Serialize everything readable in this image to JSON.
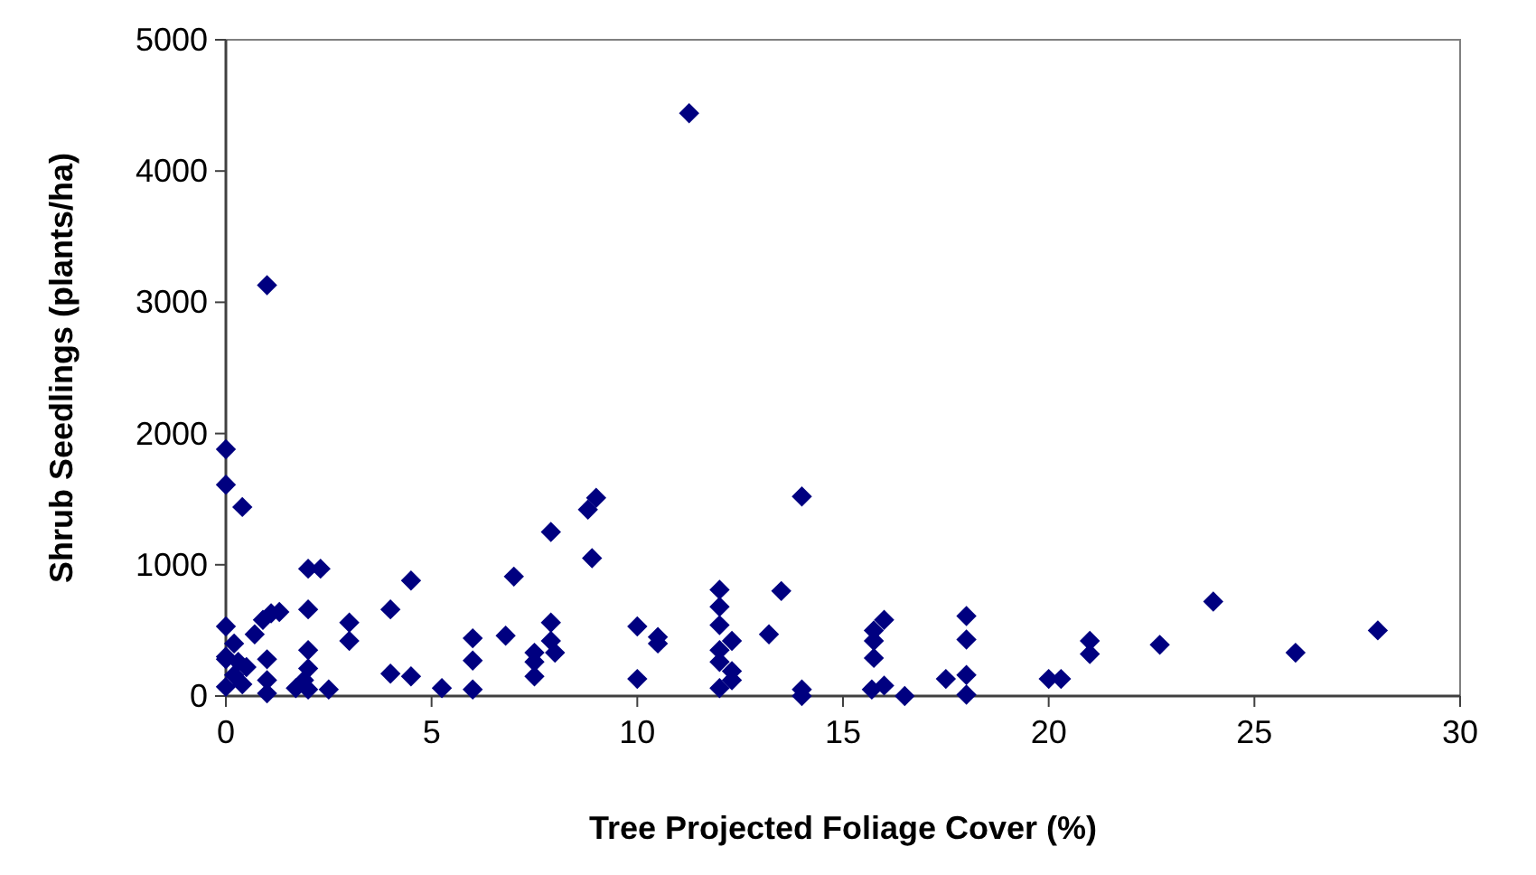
{
  "chart_data": {
    "type": "scatter",
    "xlabel": "Tree Projected Foliage Cover (%)",
    "ylabel": "Shrub Seedlings (plants/ha)",
    "xlim": [
      0,
      30
    ],
    "ylim": [
      0,
      5000
    ],
    "xticks": [
      0,
      5,
      10,
      15,
      20,
      25,
      30
    ],
    "yticks": [
      0,
      1000,
      2000,
      3000,
      4000,
      5000
    ],
    "grid": false,
    "marker": "diamond",
    "series": [
      {
        "color": "#000080",
        "x": [
          0,
          0,
          0.4,
          2.0,
          2.3,
          2.0,
          0,
          0.2,
          0,
          0,
          0.3,
          0.5,
          0,
          0.4,
          0.2,
          0.7,
          0.9,
          1.1,
          1.3,
          1.0,
          1.0,
          1.0,
          2.0,
          2.0,
          1.9,
          1.7,
          2.0,
          2.5,
          3.0,
          3.0,
          4.0,
          4.5,
          4.0,
          4.5,
          5.25,
          6.0,
          6.0,
          6.0,
          6.8,
          7.0,
          7.9,
          7.9,
          7.9,
          8.0,
          7.5,
          7.5,
          7.5,
          8.8,
          9.0,
          8.9,
          10.0,
          10.0,
          10.5,
          10.5,
          12.0,
          12.0,
          12.0,
          12.3,
          12.0,
          12.0,
          12.3,
          12.3,
          12.0,
          13.2,
          13.5,
          14.0,
          14.0,
          14.0,
          15.75,
          16.0,
          15.75,
          15.75,
          15.7,
          16.0,
          16.5,
          17.5,
          18.0,
          18.0,
          18.0,
          18.0,
          20.0,
          20.3,
          21.0,
          21.0,
          22.7,
          24.0,
          26.0,
          28.0,
          1.0,
          11.26
        ],
        "values": [
          1880,
          1610,
          1440,
          970,
          970,
          660,
          530,
          400,
          280,
          300,
          260,
          220,
          70,
          90,
          160,
          470,
          580,
          630,
          640,
          280,
          120,
          20,
          350,
          210,
          120,
          60,
          50,
          50,
          560,
          420,
          660,
          880,
          170,
          150,
          60,
          440,
          270,
          50,
          460,
          910,
          1250,
          560,
          420,
          330,
          330,
          260,
          150,
          1420,
          1510,
          1050,
          530,
          130,
          450,
          400,
          810,
          680,
          540,
          420,
          350,
          260,
          190,
          120,
          60,
          470,
          800,
          1520,
          50,
          0,
          500,
          580,
          420,
          290,
          50,
          80,
          0,
          130,
          610,
          430,
          160,
          10,
          130,
          130,
          420,
          320,
          390,
          720,
          330,
          500,
          3130,
          4440
        ]
      }
    ]
  }
}
